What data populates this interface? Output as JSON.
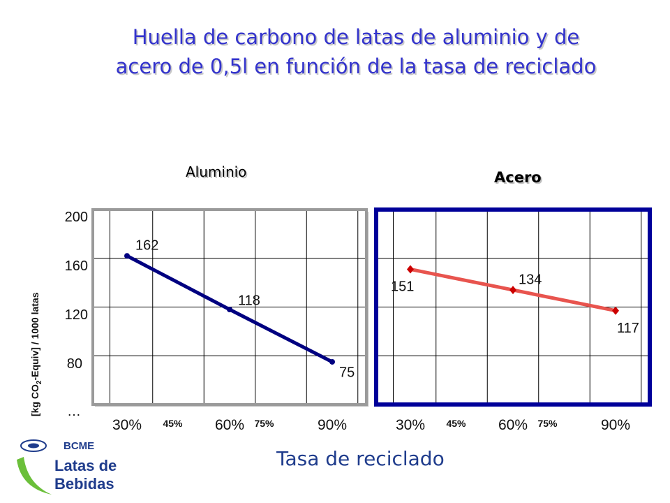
{
  "title": {
    "line1": "Huella de carbono de latas de aluminio y de",
    "line2": "acero de 0,5l en función de la tasa de reciclado"
  },
  "y_axis": {
    "label_prefix": "[kg CO",
    "label_sub": "2",
    "label_suffix": "-Equiv]  / 1000 latas",
    "ticks": [
      "200",
      "160",
      "120",
      "80",
      "…"
    ]
  },
  "x_axis_title": "Tasa de reciclado",
  "colors": {
    "aluminio_line": "#000080",
    "acero_line": "#e8544e",
    "acero_marker": "#cc0000",
    "acero_frame": "#000099",
    "grid": "#000000",
    "title": "#3333cc"
  },
  "logo": {
    "org": "BCME",
    "line1": "Latas de",
    "line2": "Bebidas",
    "icon": "bcme-can-logo-icon"
  },
  "chart_data": [
    {
      "type": "line",
      "title": "Aluminio",
      "categories": [
        "30%",
        "45%",
        "60%",
        "75%",
        "90%"
      ],
      "x": [
        30,
        60,
        90
      ],
      "values": [
        162,
        118,
        75
      ],
      "data_labels": [
        "162",
        "118",
        "75"
      ],
      "ylim": [
        40,
        200
      ],
      "yticks": [
        200,
        160,
        120,
        80
      ],
      "grid": true,
      "legend": "none"
    },
    {
      "type": "line",
      "title": "Acero",
      "categories": [
        "30%",
        "45%",
        "60%",
        "75%",
        "90%"
      ],
      "x": [
        30,
        60,
        90
      ],
      "values": [
        151,
        134,
        117
      ],
      "data_labels": [
        "151",
        "134",
        "117"
      ],
      "ylim": [
        40,
        200
      ],
      "yticks": [
        200,
        160,
        120,
        80
      ],
      "grid": true,
      "legend": "none"
    }
  ]
}
